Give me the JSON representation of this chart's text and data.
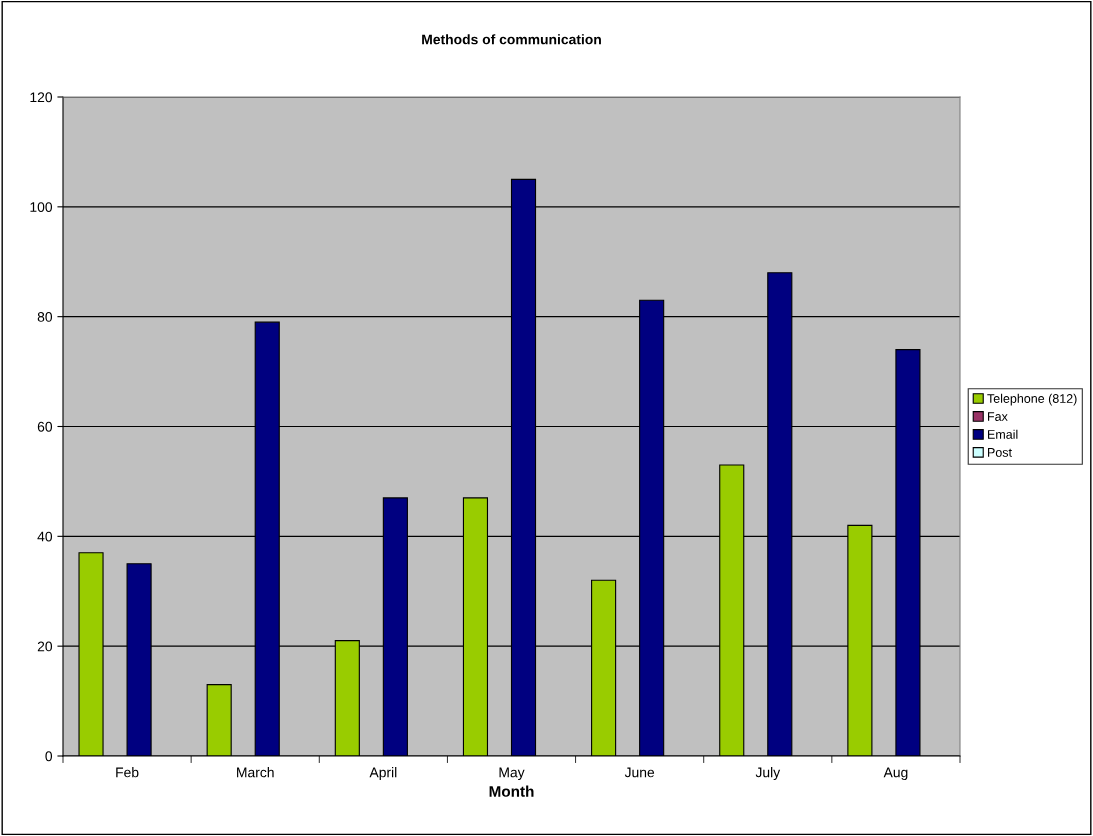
{
  "chart_data": {
    "type": "bar",
    "title": "Methods of communication",
    "xlabel": "Month",
    "categories": [
      "Feb",
      "March",
      "April",
      "May",
      "June",
      "July",
      "Aug"
    ],
    "series": [
      {
        "name": "Telephone (812)",
        "color": "#99cc00",
        "values": [
          37,
          13,
          21,
          47,
          32,
          53,
          42
        ]
      },
      {
        "name": "Fax",
        "color": "#993366",
        "values": [
          null,
          null,
          null,
          null,
          null,
          null,
          null
        ]
      },
      {
        "name": "Email",
        "color": "#000080",
        "values": [
          35,
          79,
          47,
          105,
          83,
          88,
          74
        ]
      },
      {
        "name": "Post",
        "color": "#ccffff",
        "values": [
          null,
          null,
          null,
          null,
          null,
          null,
          null
        ]
      }
    ],
    "ylim": [
      0,
      120
    ],
    "yticks": [
      0,
      20,
      40,
      60,
      80,
      100,
      120
    ],
    "grid": "y",
    "legend": "right"
  }
}
